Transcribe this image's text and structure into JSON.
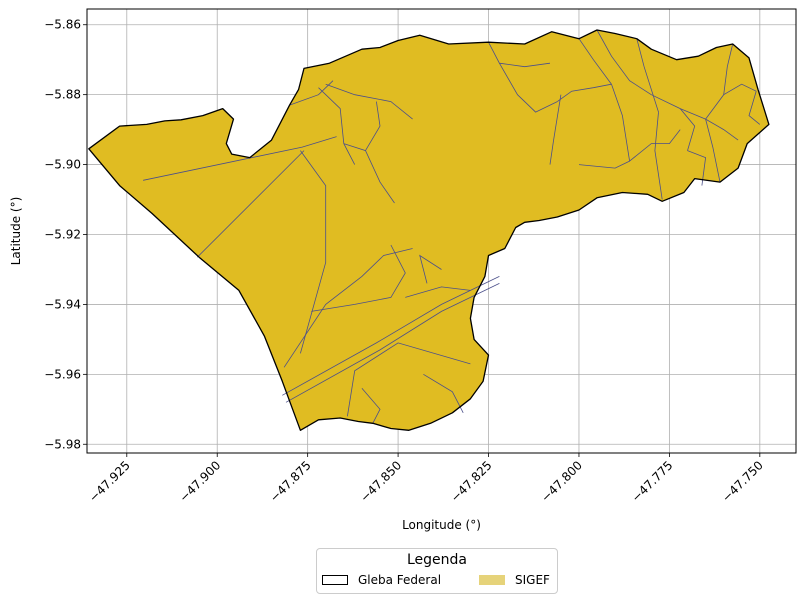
{
  "chart_data": {
    "type": "map",
    "xlabel": "Longitude (°)",
    "ylabel": "Latitude (°)",
    "xlim": [
      -47.936,
      -47.74
    ],
    "ylim": [
      -5.9825,
      -5.8555
    ],
    "x_ticks": [
      -47.925,
      -47.9,
      -47.875,
      -47.85,
      -47.825,
      -47.8,
      -47.775,
      -47.75
    ],
    "x_tick_labels": [
      "−47.925",
      "−47.900",
      "−47.875",
      "−47.850",
      "−47.825",
      "−47.800",
      "−47.775",
      "−47.750"
    ],
    "y_ticks": [
      -5.86,
      -5.88,
      -5.9,
      -5.92,
      -5.94,
      -5.96,
      -5.98
    ],
    "y_tick_labels": [
      "−5.86",
      "−5.88",
      "−5.90",
      "−5.92",
      "−5.94",
      "−5.96",
      "−5.98"
    ],
    "grid": true,
    "fill_color": "#e0bc22",
    "parcel_line_color": "#4b4f8a",
    "outline_color": "#000000",
    "outline": [
      [
        -47.9355,
        -5.8955
      ],
      [
        -47.927,
        -5.889
      ],
      [
        -47.9195,
        -5.8885
      ],
      [
        -47.9145,
        -5.8875
      ],
      [
        -47.91,
        -5.8872
      ],
      [
        -47.904,
        -5.886
      ],
      [
        -47.8985,
        -5.884
      ],
      [
        -47.8955,
        -5.887
      ],
      [
        -47.8975,
        -5.894
      ],
      [
        -47.896,
        -5.897
      ],
      [
        -47.891,
        -5.898
      ],
      [
        -47.885,
        -5.893
      ],
      [
        -47.88,
        -5.883
      ],
      [
        -47.8775,
        -5.8785
      ],
      [
        -47.876,
        -5.8725
      ],
      [
        -47.869,
        -5.871
      ],
      [
        -47.86,
        -5.867
      ],
      [
        -47.855,
        -5.8665
      ],
      [
        -47.85,
        -5.8645
      ],
      [
        -47.844,
        -5.863
      ],
      [
        -47.836,
        -5.8655
      ],
      [
        -47.825,
        -5.865
      ],
      [
        -47.815,
        -5.8655
      ],
      [
        -47.8075,
        -5.862
      ],
      [
        -47.8,
        -5.864
      ],
      [
        -47.795,
        -5.8615
      ],
      [
        -47.79,
        -5.8625
      ],
      [
        -47.784,
        -5.864
      ],
      [
        -47.78,
        -5.867
      ],
      [
        -47.773,
        -5.87
      ],
      [
        -47.767,
        -5.869
      ],
      [
        -47.762,
        -5.8665
      ],
      [
        -47.7575,
        -5.8655
      ],
      [
        -47.753,
        -5.8695
      ],
      [
        -47.7505,
        -5.8785
      ],
      [
        -47.7475,
        -5.8885
      ],
      [
        -47.7535,
        -5.894
      ],
      [
        -47.756,
        -5.901
      ],
      [
        -47.761,
        -5.905
      ],
      [
        -47.768,
        -5.904
      ],
      [
        -47.771,
        -5.908
      ],
      [
        -47.777,
        -5.9105
      ],
      [
        -47.781,
        -5.9085
      ],
      [
        -47.788,
        -5.908
      ],
      [
        -47.795,
        -5.9095
      ],
      [
        -47.8,
        -5.913
      ],
      [
        -47.806,
        -5.915
      ],
      [
        -47.811,
        -5.916
      ],
      [
        -47.815,
        -5.9165
      ],
      [
        -47.8175,
        -5.918
      ],
      [
        -47.8205,
        -5.924
      ],
      [
        -47.825,
        -5.926
      ],
      [
        -47.826,
        -5.932
      ],
      [
        -47.829,
        -5.938
      ],
      [
        -47.83,
        -5.944
      ],
      [
        -47.829,
        -5.95
      ],
      [
        -47.825,
        -5.9545
      ],
      [
        -47.8265,
        -5.962
      ],
      [
        -47.83,
        -5.967
      ],
      [
        -47.835,
        -5.971
      ],
      [
        -47.841,
        -5.974
      ],
      [
        -47.847,
        -5.976
      ],
      [
        -47.852,
        -5.9755
      ],
      [
        -47.857,
        -5.974
      ],
      [
        -47.861,
        -5.9735
      ],
      [
        -47.866,
        -5.9725
      ],
      [
        -47.872,
        -5.973
      ],
      [
        -47.877,
        -5.976
      ],
      [
        -47.882,
        -5.962
      ],
      [
        -47.887,
        -5.949
      ],
      [
        -47.894,
        -5.936
      ],
      [
        -47.905,
        -5.9265
      ],
      [
        -47.918,
        -5.914
      ],
      [
        -47.927,
        -5.906
      ],
      [
        -47.9355,
        -5.8955
      ]
    ],
    "parcels": [
      [
        [
          -47.9205,
          -5.9045
        ],
        [
          -47.8765,
          -5.895
        ],
        [
          -47.867,
          -5.892
        ]
      ],
      [
        [
          -47.9055,
          -5.9265
        ],
        [
          -47.876,
          -5.896
        ]
      ],
      [
        [
          -47.877,
          -5.896
        ],
        [
          -47.87,
          -5.906
        ],
        [
          -47.87,
          -5.928
        ],
        [
          -47.877,
          -5.954
        ]
      ],
      [
        [
          -47.8815,
          -5.958
        ],
        [
          -47.87,
          -5.94
        ],
        [
          -47.86,
          -5.932
        ],
        [
          -47.854,
          -5.926
        ],
        [
          -47.846,
          -5.924
        ]
      ],
      [
        [
          -47.874,
          -5.942
        ],
        [
          -47.862,
          -5.94
        ],
        [
          -47.852,
          -5.938
        ],
        [
          -47.848,
          -5.931
        ],
        [
          -47.852,
          -5.923
        ]
      ],
      [
        [
          -47.882,
          -5.966
        ],
        [
          -47.856,
          -5.951
        ],
        [
          -47.838,
          -5.94
        ],
        [
          -47.822,
          -5.932
        ]
      ],
      [
        [
          -47.881,
          -5.968
        ],
        [
          -47.855,
          -5.953
        ],
        [
          -47.838,
          -5.942
        ],
        [
          -47.822,
          -5.934
        ]
      ],
      [
        [
          -47.864,
          -5.972
        ],
        [
          -47.862,
          -5.959
        ],
        [
          -47.85,
          -5.951
        ],
        [
          -47.83,
          -5.957
        ]
      ],
      [
        [
          -47.843,
          -5.96
        ],
        [
          -47.835,
          -5.965
        ],
        [
          -47.832,
          -5.971
        ]
      ],
      [
        [
          -47.848,
          -5.938
        ],
        [
          -47.838,
          -5.935
        ],
        [
          -47.83,
          -5.936
        ]
      ],
      [
        [
          -47.838,
          -5.93
        ],
        [
          -47.844,
          -5.926
        ],
        [
          -47.842,
          -5.934
        ]
      ],
      [
        [
          -47.88,
          -5.883
        ],
        [
          -47.872,
          -5.88
        ],
        [
          -47.868,
          -5.876
        ]
      ],
      [
        [
          -47.87,
          -5.877
        ],
        [
          -47.862,
          -5.88
        ],
        [
          -47.852,
          -5.882
        ],
        [
          -47.846,
          -5.887
        ]
      ],
      [
        [
          -47.872,
          -5.878
        ],
        [
          -47.866,
          -5.884
        ],
        [
          -47.865,
          -5.894
        ],
        [
          -47.862,
          -5.9
        ]
      ],
      [
        [
          -47.865,
          -5.894
        ],
        [
          -47.859,
          -5.896
        ],
        [
          -47.855,
          -5.905
        ],
        [
          -47.851,
          -5.911
        ]
      ],
      [
        [
          -47.859,
          -5.896
        ],
        [
          -47.855,
          -5.889
        ],
        [
          -47.856,
          -5.882
        ]
      ],
      [
        [
          -47.825,
          -5.865
        ],
        [
          -47.822,
          -5.871
        ],
        [
          -47.815,
          -5.872
        ],
        [
          -47.808,
          -5.871
        ]
      ],
      [
        [
          -47.822,
          -5.871
        ],
        [
          -47.817,
          -5.88
        ],
        [
          -47.812,
          -5.885
        ],
        [
          -47.806,
          -5.882
        ]
      ],
      [
        [
          -47.806,
          -5.882
        ],
        [
          -47.802,
          -5.879
        ],
        [
          -47.796,
          -5.878
        ],
        [
          -47.791,
          -5.877
        ]
      ],
      [
        [
          -47.8,
          -5.864
        ],
        [
          -47.796,
          -5.87
        ],
        [
          -47.791,
          -5.877
        ]
      ],
      [
        [
          -47.795,
          -5.8615
        ],
        [
          -47.791,
          -5.869
        ],
        [
          -47.786,
          -5.876
        ],
        [
          -47.78,
          -5.88
        ]
      ],
      [
        [
          -47.791,
          -5.877
        ],
        [
          -47.788,
          -5.886
        ],
        [
          -47.786,
          -5.899
        ],
        [
          -47.79,
          -5.901
        ],
        [
          -47.8,
          -5.9
        ]
      ],
      [
        [
          -47.786,
          -5.899
        ],
        [
          -47.78,
          -5.894
        ],
        [
          -47.775,
          -5.894
        ],
        [
          -47.772,
          -5.89
        ]
      ],
      [
        [
          -47.78,
          -5.88
        ],
        [
          -47.772,
          -5.884
        ],
        [
          -47.768,
          -5.889
        ],
        [
          -47.77,
          -5.896
        ]
      ],
      [
        [
          -47.772,
          -5.884
        ],
        [
          -47.765,
          -5.887
        ],
        [
          -47.76,
          -5.89
        ],
        [
          -47.756,
          -5.893
        ]
      ],
      [
        [
          -47.765,
          -5.887
        ],
        [
          -47.763,
          -5.895
        ],
        [
          -47.761,
          -5.905
        ]
      ],
      [
        [
          -47.765,
          -5.887
        ],
        [
          -47.76,
          -5.88
        ],
        [
          -47.755,
          -5.877
        ],
        [
          -47.751,
          -5.879
        ]
      ],
      [
        [
          -47.76,
          -5.88
        ],
        [
          -47.759,
          -5.872
        ],
        [
          -47.7575,
          -5.8655
        ]
      ],
      [
        [
          -47.751,
          -5.879
        ],
        [
          -47.753,
          -5.886
        ],
        [
          -47.75,
          -5.8885
        ]
      ],
      [
        [
          -47.77,
          -5.896
        ],
        [
          -47.765,
          -5.898
        ],
        [
          -47.766,
          -5.906
        ]
      ],
      [
        [
          -47.778,
          -5.885
        ],
        [
          -47.779,
          -5.896
        ],
        [
          -47.777,
          -5.91
        ]
      ],
      [
        [
          -47.784,
          -5.864
        ],
        [
          -47.782,
          -5.872
        ],
        [
          -47.778,
          -5.885
        ]
      ],
      [
        [
          -47.805,
          -5.88
        ],
        [
          -47.807,
          -5.893
        ],
        [
          -47.808,
          -5.9
        ]
      ],
      [
        [
          -47.857,
          -5.974
        ],
        [
          -47.855,
          -5.97
        ],
        [
          -47.86,
          -5.964
        ]
      ]
    ]
  },
  "legend": {
    "title": "Legenda",
    "entries": [
      {
        "label": "Gleba Federal",
        "swatch": "outline"
      },
      {
        "label": "SIGEF",
        "swatch": "#e6d37a"
      }
    ]
  }
}
